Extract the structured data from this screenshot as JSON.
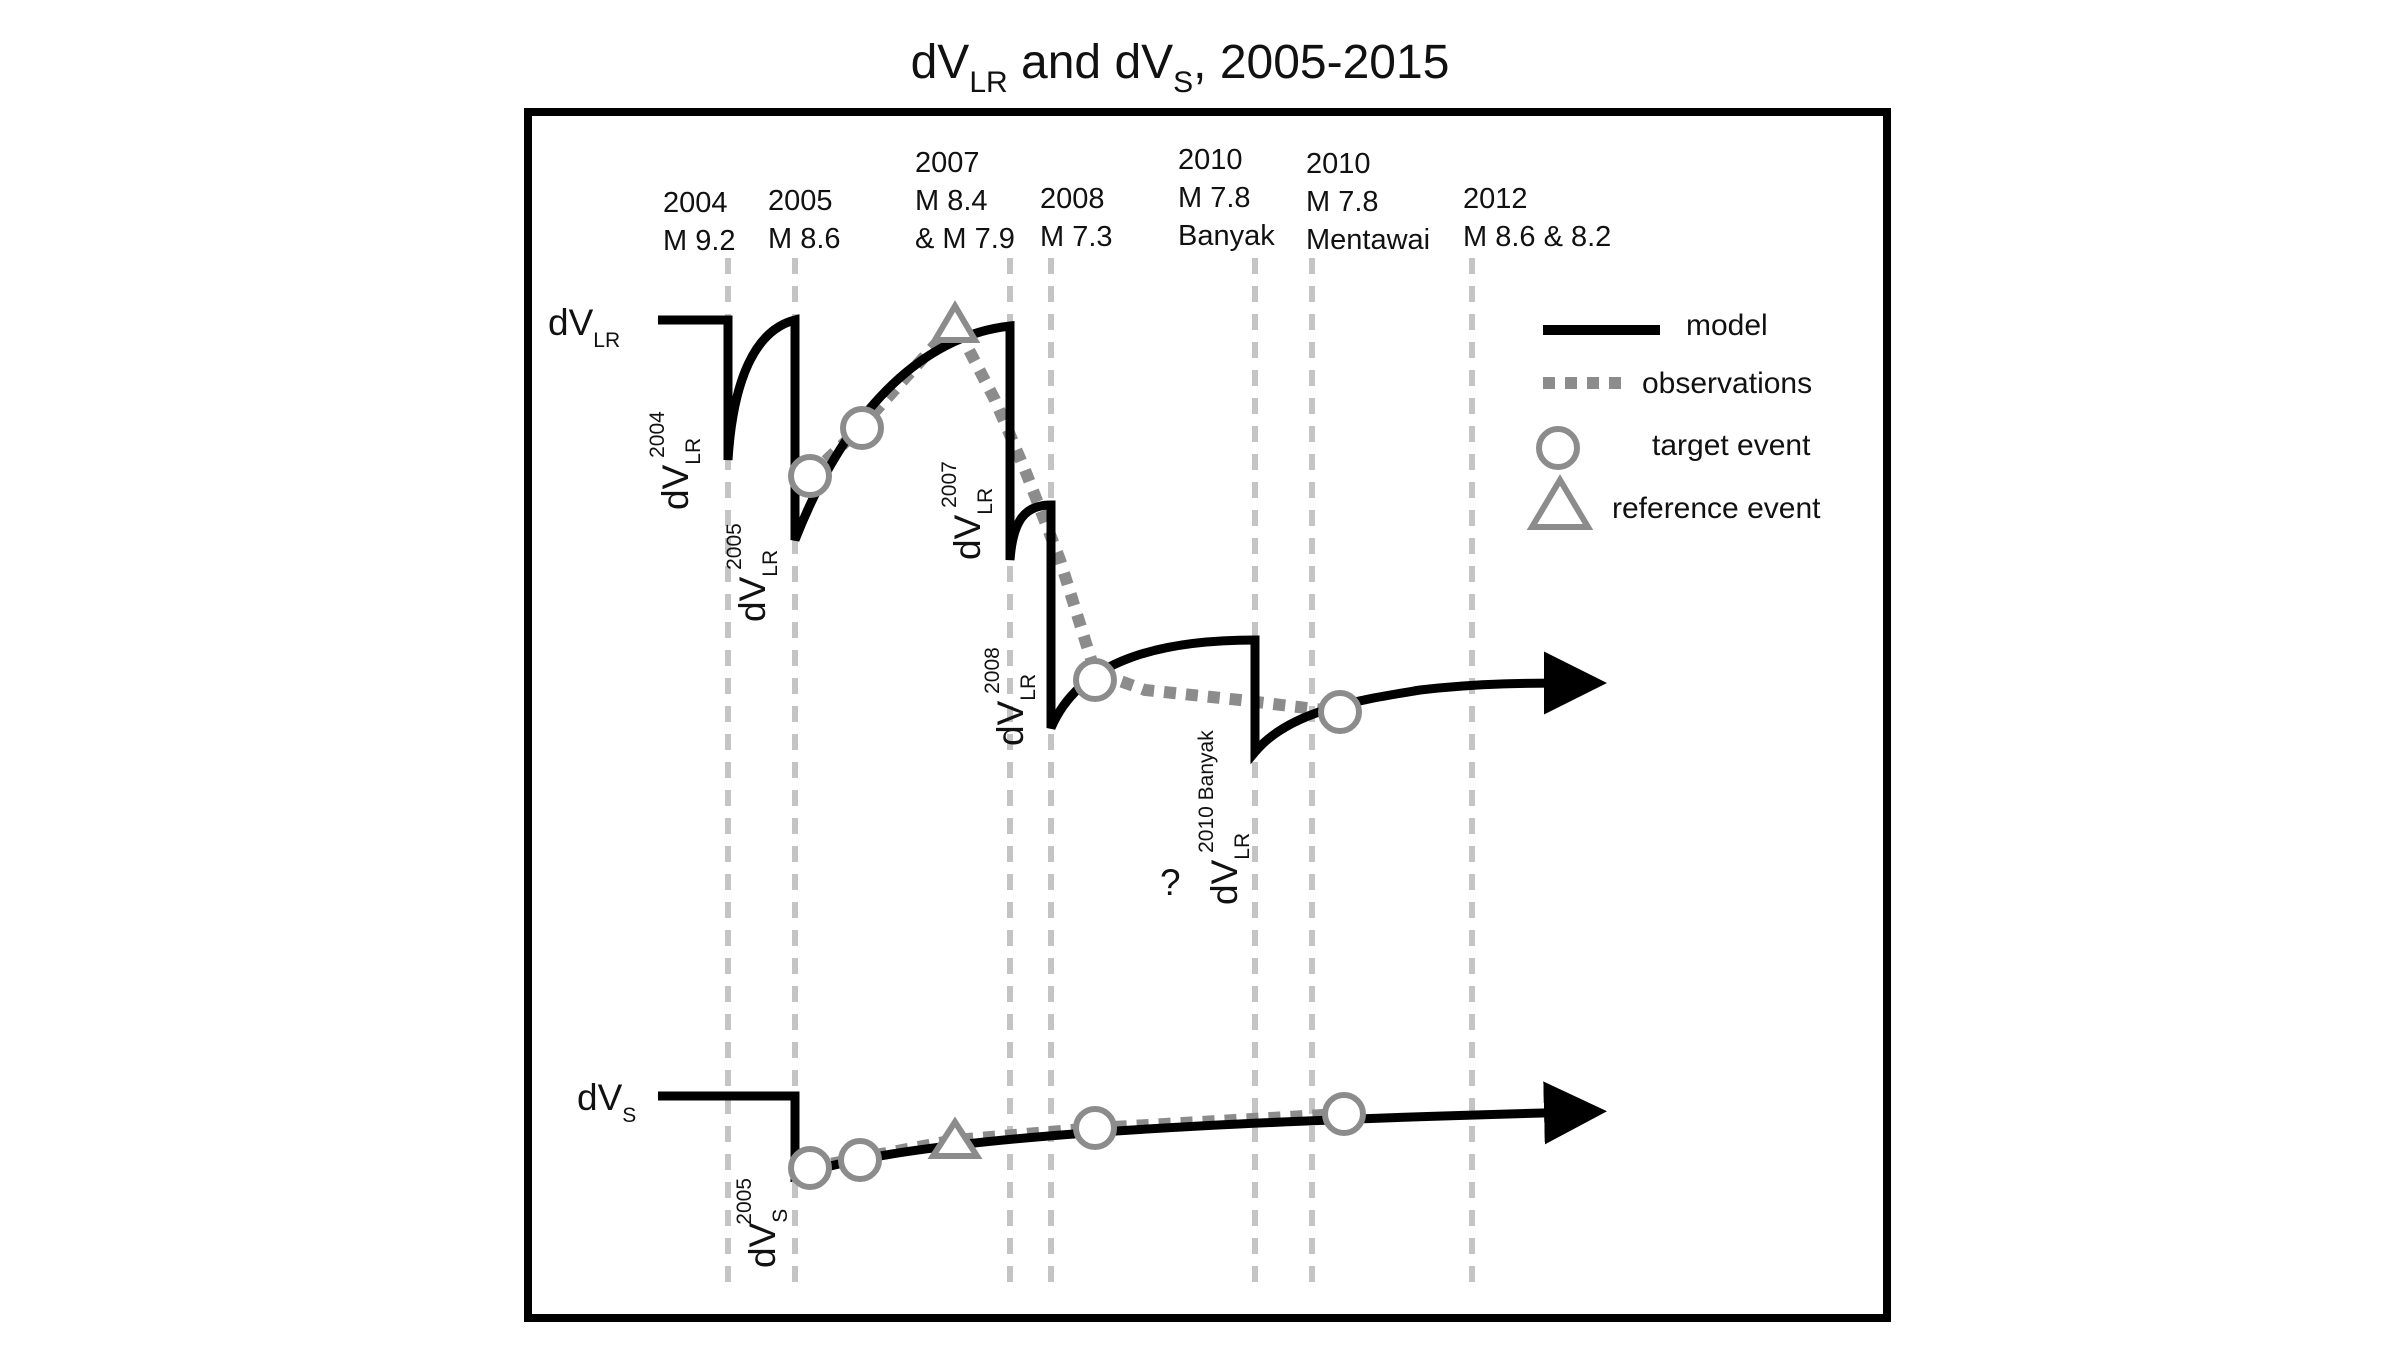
{
  "title": {
    "main": "dV",
    "sub1": "LR",
    "mid": " and dV",
    "sub2": "S",
    "tail": ", 2005-2015"
  },
  "events": [
    {
      "lines": [
        "2004",
        "M 9.2"
      ]
    },
    {
      "lines": [
        "2005",
        "M 8.6"
      ]
    },
    {
      "lines": [
        "2007",
        "M 8.4",
        "& M 7.9"
      ]
    },
    {
      "lines": [
        "2008",
        "M 7.3"
      ]
    },
    {
      "lines": [
        "2010",
        "M 7.8",
        "Banyak"
      ]
    },
    {
      "lines": [
        "2010",
        "M 7.8",
        "Mentawai"
      ]
    },
    {
      "lines": [
        "2012",
        "M 8.6 & 8.2"
      ]
    }
  ],
  "row_labels": {
    "dvlr": {
      "base": "dV",
      "sub": "LR"
    },
    "dvs": {
      "base": "dV",
      "sub": "S"
    }
  },
  "drop_labels": [
    {
      "base": "dV",
      "sub": "LR",
      "sup": "2004"
    },
    {
      "base": "dV",
      "sub": "LR",
      "sup": "2005"
    },
    {
      "base": "dV",
      "sub": "LR",
      "sup": "2007"
    },
    {
      "base": "dV",
      "sub": "LR",
      "sup": "2008"
    },
    {
      "base": "dV",
      "sub": "LR",
      "sup": "2010 Banyak"
    },
    {
      "base": "dV",
      "sub": "S",
      "sup": "2005"
    }
  ],
  "question_mark": "?",
  "legend": {
    "model": "model",
    "observations": "observations",
    "target": "target event",
    "reference": "reference event"
  },
  "colors": {
    "model": "#000000",
    "observations": "#8c8c8c",
    "grid": "#c4c4c4",
    "frame": "#000000"
  }
}
